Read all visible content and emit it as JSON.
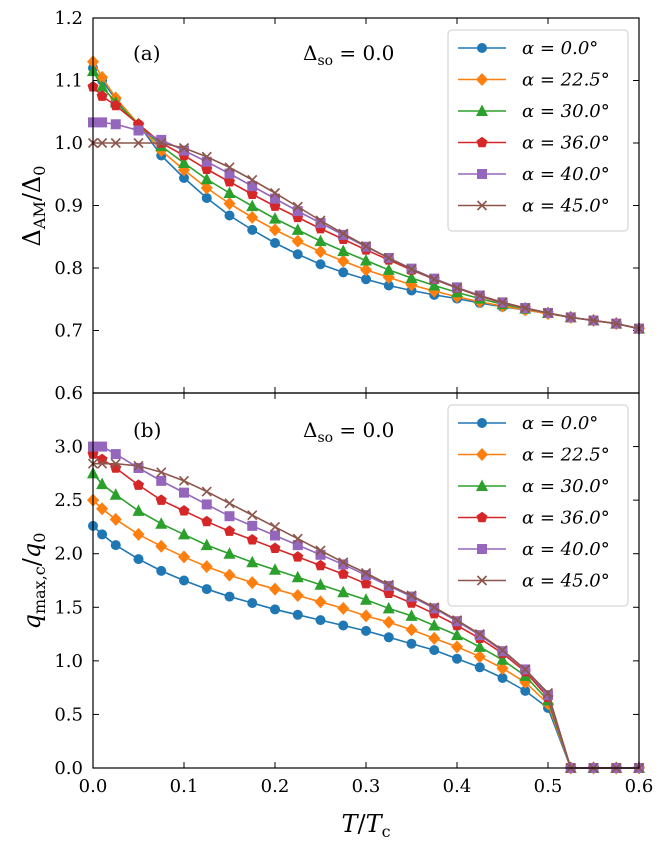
{
  "xlabel_main": "T",
  "xlabel_sub": "c",
  "xlabel_prefix_sep": "/",
  "chart_data": [
    {
      "type": "line",
      "panel_label": "(a)",
      "annotation": "Δso = 0.0",
      "annotation_main": "Δ",
      "annotation_sub": "so",
      "annotation_rest": " = 0.0",
      "ylabel_main": "Δ",
      "ylabel_sub": "AM",
      "ylabel_den": "Δ",
      "ylabel_den_sub": "0",
      "x": [
        0.0,
        0.01,
        0.025,
        0.05,
        0.075,
        0.1,
        0.125,
        0.15,
        0.175,
        0.2,
        0.225,
        0.25,
        0.275,
        0.3,
        0.325,
        0.35,
        0.375,
        0.4,
        0.425,
        0.45,
        0.475,
        0.5,
        0.525,
        0.55,
        0.575,
        0.6
      ],
      "xlim": [
        0,
        0.6
      ],
      "ylim": [
        0.6,
        1.2
      ],
      "xticks": [
        "0.0",
        "0.1",
        "0.2",
        "0.3",
        "0.4",
        "0.5",
        "0.6"
      ],
      "yticks": [
        "0.6",
        "0.7",
        "0.8",
        "0.9",
        "1.0",
        "1.1",
        "1.2"
      ],
      "legend_position": "top-right",
      "series": [
        {
          "name": "α = 0.0°",
          "color": "#1f77b4",
          "marker": "circle",
          "values": [
            1.12,
            1.1,
            1.07,
            1.03,
            0.98,
            0.944,
            0.912,
            0.884,
            0.861,
            0.84,
            0.822,
            0.806,
            0.793,
            0.782,
            0.772,
            0.764,
            0.757,
            0.751,
            0.744,
            0.738,
            0.733,
            0.727,
            0.721,
            0.716,
            0.711,
            0.703
          ]
        },
        {
          "name": "α = 22.5°",
          "color": "#ff7f0e",
          "marker": "diamond",
          "values": [
            1.13,
            1.105,
            1.072,
            1.03,
            0.988,
            0.957,
            0.928,
            0.903,
            0.881,
            0.861,
            0.843,
            0.826,
            0.811,
            0.797,
            0.785,
            0.773,
            0.763,
            0.754,
            0.746,
            0.739,
            0.733,
            0.727,
            0.721,
            0.716,
            0.711,
            0.703
          ]
        },
        {
          "name": "α = 30.0°",
          "color": "#2ca02c",
          "marker": "triangle",
          "values": [
            1.115,
            1.09,
            1.065,
            1.03,
            0.995,
            0.968,
            0.942,
            0.92,
            0.899,
            0.879,
            0.861,
            0.843,
            0.827,
            0.812,
            0.797,
            0.784,
            0.772,
            0.761,
            0.751,
            0.742,
            0.735,
            0.728,
            0.721,
            0.716,
            0.711,
            0.703
          ]
        },
        {
          "name": "α = 36.0°",
          "color": "#d62728",
          "marker": "pentagon",
          "values": [
            1.09,
            1.075,
            1.06,
            1.03,
            1.0,
            0.98,
            0.958,
            0.938,
            0.918,
            0.899,
            0.881,
            0.863,
            0.846,
            0.829,
            0.813,
            0.797,
            0.782,
            0.768,
            0.755,
            0.744,
            0.736,
            0.728,
            0.721,
            0.716,
            0.711,
            0.703
          ]
        },
        {
          "name": "α = 40.0°",
          "color": "#9467bd",
          "marker": "square",
          "values": [
            1.033,
            1.033,
            1.03,
            1.02,
            1.005,
            0.988,
            0.97,
            0.951,
            0.931,
            0.911,
            0.891,
            0.872,
            0.853,
            0.834,
            0.816,
            0.799,
            0.783,
            0.769,
            0.756,
            0.745,
            0.736,
            0.728,
            0.721,
            0.716,
            0.711,
            0.703
          ]
        },
        {
          "name": "α = 45.0°",
          "color": "#8c564b",
          "marker": "x",
          "values": [
            1.0,
            1.0,
            1.0,
            1.0,
            1.0,
            0.992,
            0.978,
            0.961,
            0.941,
            0.92,
            0.898,
            0.876,
            0.855,
            0.835,
            0.816,
            0.798,
            0.782,
            0.768,
            0.756,
            0.745,
            0.736,
            0.728,
            0.721,
            0.716,
            0.711,
            0.703
          ]
        }
      ]
    },
    {
      "type": "line",
      "panel_label": "(b)",
      "annotation": "Δso = 0.0",
      "annotation_main": "Δ",
      "annotation_sub": "so",
      "annotation_rest": " = 0.0",
      "ylabel_main": "q",
      "ylabel_sub": "max,c",
      "ylabel_den": "q",
      "ylabel_den_sub": "0",
      "x": [
        0.0,
        0.01,
        0.025,
        0.05,
        0.075,
        0.1,
        0.125,
        0.15,
        0.175,
        0.2,
        0.225,
        0.25,
        0.275,
        0.3,
        0.325,
        0.35,
        0.375,
        0.4,
        0.425,
        0.45,
        0.475,
        0.5,
        0.525,
        0.55,
        0.575,
        0.6
      ],
      "xlim": [
        0,
        0.6
      ],
      "ylim": [
        0,
        3.5
      ],
      "xticks": [
        "0.0",
        "0.1",
        "0.2",
        "0.3",
        "0.4",
        "0.5",
        "0.6"
      ],
      "yticks": [
        "0.0",
        "0.5",
        "1.0",
        "1.5",
        "2.0",
        "2.5",
        "3.0"
      ],
      "legend_position": "top-right",
      "series": [
        {
          "name": "α = 0.0°",
          "color": "#1f77b4",
          "marker": "circle",
          "values": [
            2.26,
            2.18,
            2.08,
            1.95,
            1.84,
            1.75,
            1.67,
            1.6,
            1.54,
            1.48,
            1.43,
            1.38,
            1.33,
            1.28,
            1.22,
            1.16,
            1.1,
            1.02,
            0.94,
            0.84,
            0.72,
            0.56,
            0.0,
            0.0,
            0.0,
            0.0
          ]
        },
        {
          "name": "α = 22.5°",
          "color": "#ff7f0e",
          "marker": "diamond",
          "values": [
            2.5,
            2.42,
            2.32,
            2.18,
            2.07,
            1.97,
            1.88,
            1.8,
            1.73,
            1.67,
            1.61,
            1.55,
            1.49,
            1.42,
            1.36,
            1.29,
            1.21,
            1.13,
            1.04,
            0.93,
            0.8,
            0.6,
            0.0,
            0.0,
            0.0,
            0.0
          ]
        },
        {
          "name": "α = 30.0°",
          "color": "#2ca02c",
          "marker": "triangle",
          "values": [
            2.75,
            2.65,
            2.55,
            2.4,
            2.28,
            2.18,
            2.08,
            2.0,
            1.92,
            1.85,
            1.78,
            1.71,
            1.64,
            1.57,
            1.49,
            1.42,
            1.33,
            1.24,
            1.13,
            1.01,
            0.86,
            0.63,
            0.0,
            0.0,
            0.0,
            0.0
          ]
        },
        {
          "name": "α = 36.0°",
          "color": "#d62728",
          "marker": "pentagon",
          "values": [
            2.93,
            2.88,
            2.8,
            2.64,
            2.5,
            2.4,
            2.3,
            2.21,
            2.13,
            2.05,
            1.97,
            1.89,
            1.81,
            1.72,
            1.63,
            1.54,
            1.44,
            1.33,
            1.21,
            1.07,
            0.9,
            0.66,
            0.0,
            0.0,
            0.0,
            0.0
          ]
        },
        {
          "name": "α = 40.0°",
          "color": "#9467bd",
          "marker": "square",
          "values": [
            3.0,
            3.0,
            2.93,
            2.8,
            2.68,
            2.57,
            2.46,
            2.35,
            2.26,
            2.17,
            2.08,
            1.99,
            1.9,
            1.8,
            1.7,
            1.6,
            1.49,
            1.37,
            1.24,
            1.09,
            0.92,
            0.68,
            0.0,
            0.0,
            0.0,
            0.0
          ]
        },
        {
          "name": "α = 45.0°",
          "color": "#8c564b",
          "marker": "x",
          "values": [
            2.84,
            2.84,
            2.84,
            2.82,
            2.76,
            2.68,
            2.58,
            2.47,
            2.36,
            2.25,
            2.14,
            2.03,
            1.92,
            1.82,
            1.71,
            1.61,
            1.5,
            1.38,
            1.25,
            1.1,
            0.92,
            0.7,
            0.0,
            0.0,
            0.0,
            0.0
          ]
        }
      ]
    }
  ]
}
